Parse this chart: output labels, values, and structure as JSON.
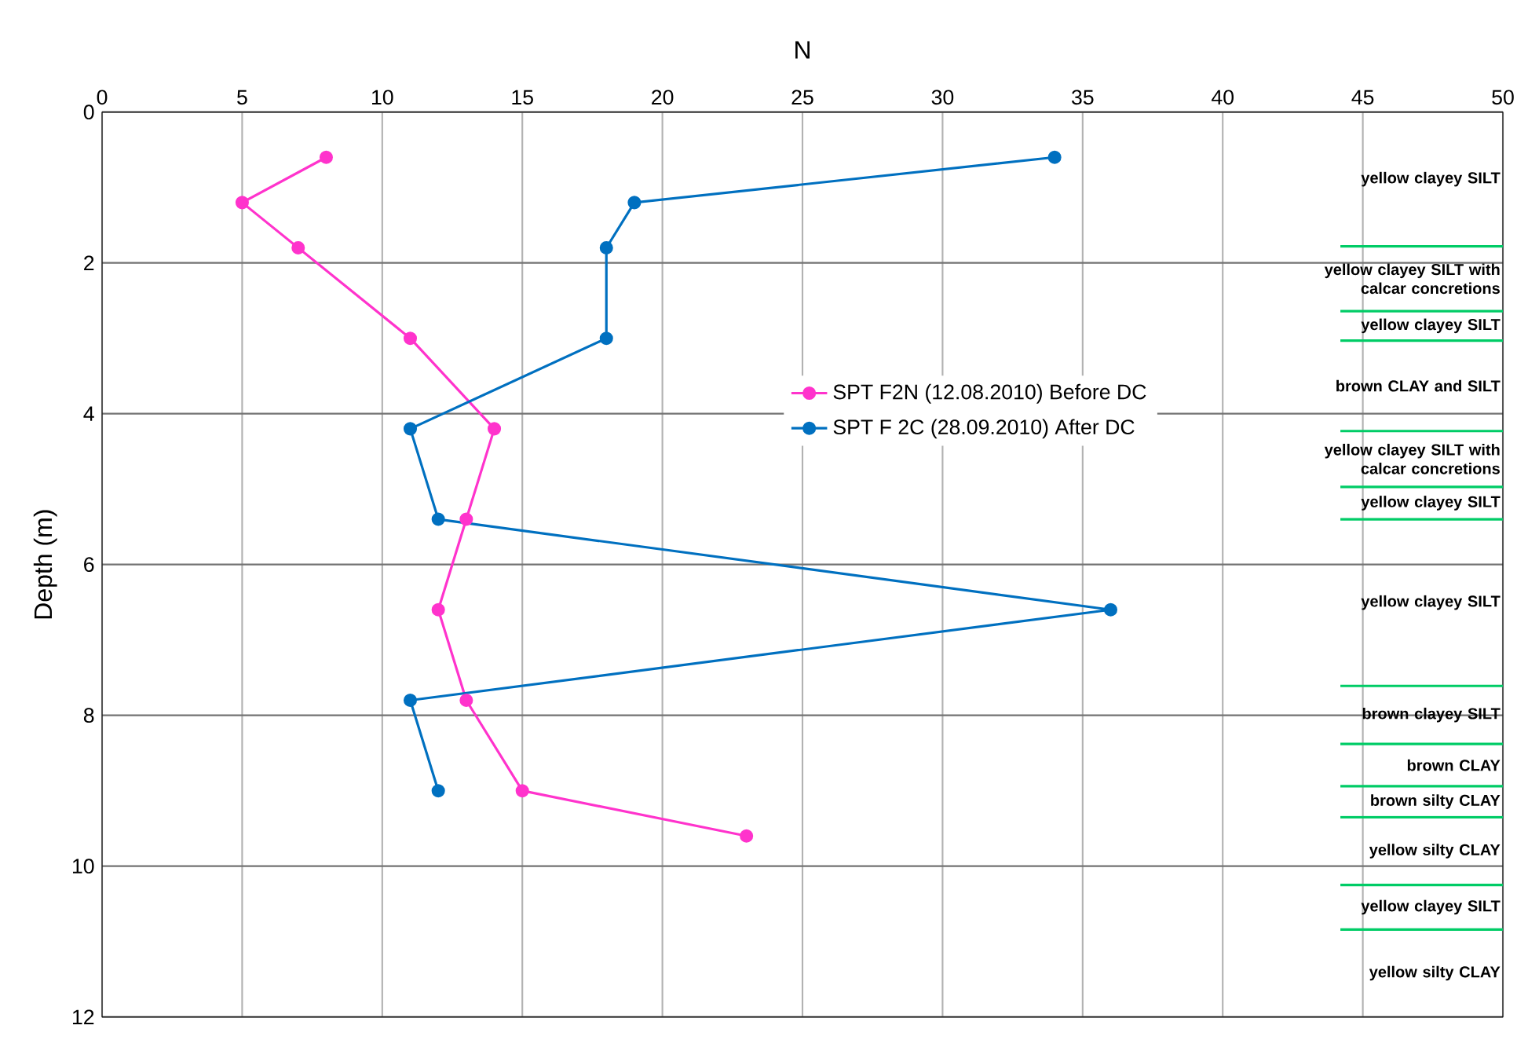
{
  "chart_data": {
    "type": "line",
    "xlabel": "N",
    "ylabel": "Depth (m)",
    "xlim": [
      0,
      50
    ],
    "xticks": [
      0,
      5,
      10,
      15,
      20,
      25,
      30,
      35,
      40,
      45,
      50
    ],
    "ylim": [
      12,
      0
    ],
    "yticks": [
      0,
      2,
      4,
      6,
      8,
      10,
      12
    ],
    "grid": true,
    "legend": "center",
    "marker": "circle",
    "series": [
      {
        "name": "SPT F2N (12.08.2010) Before DC",
        "color": "#ff33cc",
        "x": [
          8,
          5,
          7,
          11,
          14,
          13,
          12,
          13,
          15,
          23
        ],
        "values": [
          0.6,
          1.2,
          1.8,
          3.0,
          4.2,
          5.4,
          6.6,
          7.8,
          9.0,
          9.6
        ]
      },
      {
        "name": "SPT F 2C (28.09.2010) After DC",
        "color": "#0070c0",
        "x": [
          34,
          19,
          18,
          18,
          11,
          12,
          36,
          11,
          12
        ],
        "values": [
          0.6,
          1.2,
          1.8,
          3.0,
          4.2,
          5.4,
          6.6,
          7.8,
          9.0
        ]
      },
      {
        "color": "#00cc66",
        "marker": "none",
        "x": [
          44.2,
          50
        ],
        "values": [
          1.78,
          1.78
        ]
      },
      {
        "color": "#00cc66",
        "marker": "none",
        "x": [
          44.2,
          50
        ],
        "values": [
          2.64,
          2.64
        ]
      },
      {
        "color": "#00cc66",
        "marker": "none",
        "x": [
          44.2,
          50
        ],
        "values": [
          3.03,
          3.03
        ]
      },
      {
        "color": "#00cc66",
        "marker": "none",
        "x": [
          44.2,
          50
        ],
        "values": [
          4.23,
          4.23
        ]
      },
      {
        "color": "#00cc66",
        "marker": "none",
        "x": [
          44.2,
          50
        ],
        "values": [
          4.97,
          4.97
        ]
      },
      {
        "color": "#00cc66",
        "marker": "none",
        "x": [
          44.2,
          50
        ],
        "values": [
          5.4,
          5.4
        ]
      },
      {
        "color": "#00cc66",
        "marker": "none",
        "x": [
          44.2,
          50
        ],
        "values": [
          7.61,
          7.61
        ]
      },
      {
        "color": "#00cc66",
        "marker": "none",
        "x": [
          44.2,
          50
        ],
        "values": [
          8.38,
          8.38
        ]
      },
      {
        "color": "#00cc66",
        "marker": "none",
        "x": [
          44.2,
          50
        ],
        "values": [
          8.94,
          8.94
        ]
      },
      {
        "color": "#00cc66",
        "marker": "none",
        "x": [
          44.2,
          50
        ],
        "values": [
          9.35,
          9.35
        ]
      },
      {
        "color": "#00cc66",
        "marker": "none",
        "x": [
          44.2,
          50
        ],
        "values": [
          10.25,
          10.25
        ]
      },
      {
        "color": "#00cc66",
        "marker": "none",
        "x": [
          44.2,
          50
        ],
        "values": [
          10.84,
          10.84
        ]
      }
    ],
    "annotations": [
      "yellow clayey SILT",
      "yellow clayey SILT with calcar concretions",
      "yellow clayey SILT",
      "brown CLAY and SILT",
      "yellow clayey SILT with calcar concretions",
      "yellow clayey SILT",
      "yellow clayey SILT",
      "brown clayey SILT",
      "brown CLAY",
      "brown silty CLAY",
      "yellow silty CLAY",
      "yellow clayey SILT",
      "yellow silty CLAY"
    ]
  }
}
